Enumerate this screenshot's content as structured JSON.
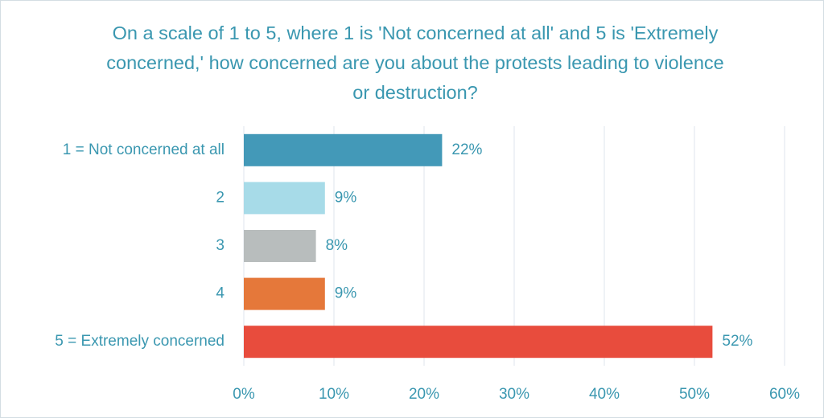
{
  "chart_data": {
    "type": "bar",
    "orientation": "horizontal",
    "title": "On a scale of 1 to 5, where 1 is 'Not concerned at all' and 5 is 'Extremely concerned,' how concerned are you about the protests leading to violence or destruction?",
    "categories": [
      "1 = Not concerned at all",
      "2",
      "3",
      "4",
      "5 = Extremely concerned"
    ],
    "values": [
      22,
      9,
      8,
      9,
      52
    ],
    "value_labels": [
      "22%",
      "9%",
      "8%",
      "9%",
      "52%"
    ],
    "colors": [
      "#4399b8",
      "#a7dbe8",
      "#b8bdbd",
      "#e5783a",
      "#e84c3d"
    ],
    "xlim": [
      0,
      60
    ],
    "xticks": [
      {
        "value": 0,
        "label": "0%"
      },
      {
        "value": 10,
        "label": "10%"
      },
      {
        "value": 20,
        "label": "20%"
      },
      {
        "value": 30,
        "label": "30%"
      },
      {
        "value": 40,
        "label": "40%"
      },
      {
        "value": 50,
        "label": "50%"
      },
      {
        "value": 60,
        "label": "60%"
      }
    ],
    "grid": true
  }
}
